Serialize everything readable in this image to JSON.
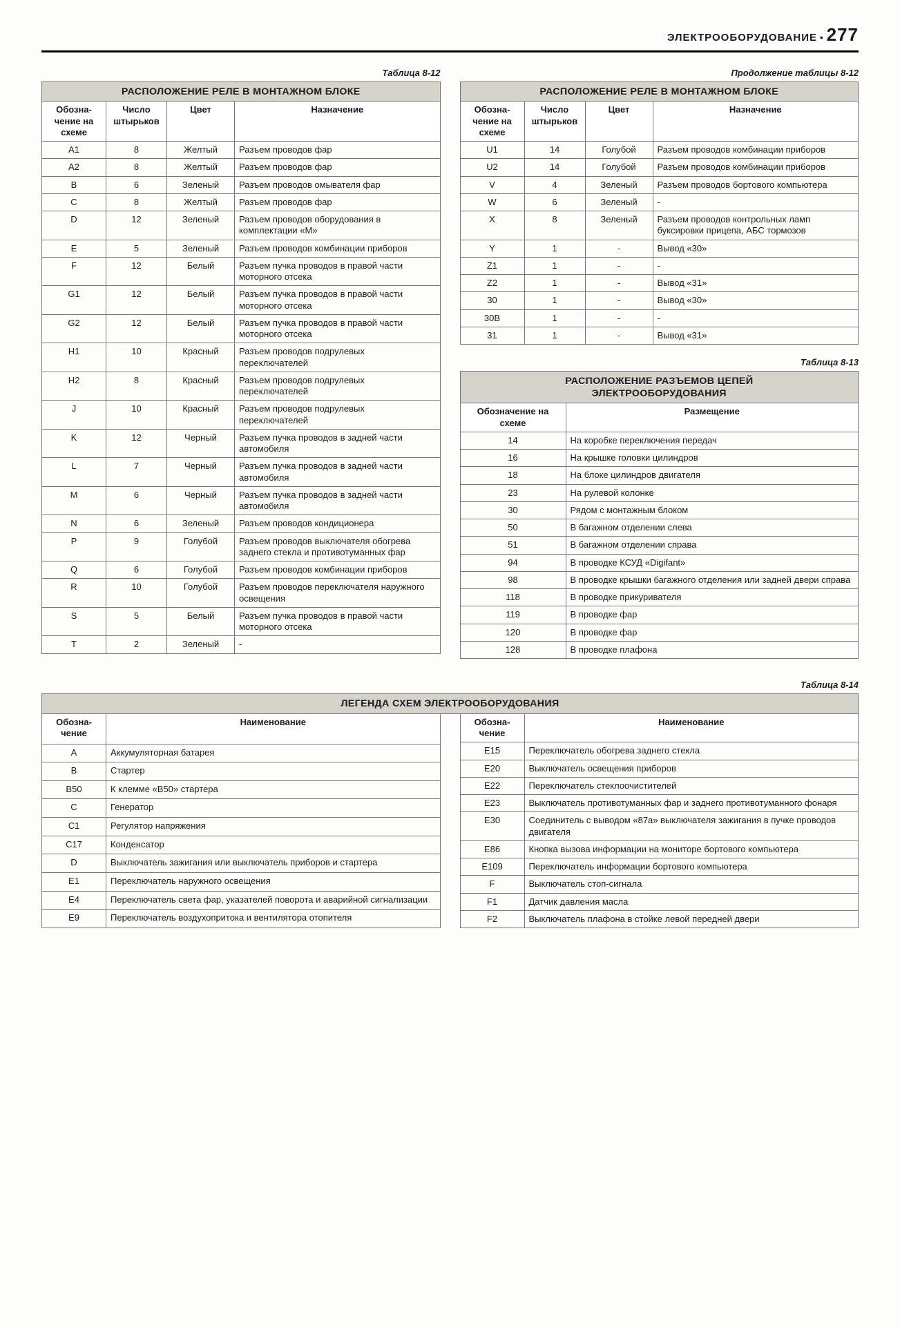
{
  "header": {
    "title": "ЭЛЕКТРООБОРУДОВАНИЕ",
    "page": "277"
  },
  "captions": {
    "t812": "Таблица 8-12",
    "t812c": "Продолжение таблицы 8-12",
    "t813": "Таблица 8-13",
    "t814": "Таблица 8-14"
  },
  "titles": {
    "t812": "РАСПОЛОЖЕНИЕ РЕЛЕ В МОНТАЖНОМ БЛОКЕ",
    "t813a": "РАСПОЛОЖЕНИЕ РАЗЪЕМОВ ЦЕПЕЙ",
    "t813b": "ЭЛЕКТРООБОРУДОВАНИЯ",
    "t814": "ЛЕГЕНДА СХЕМ ЭЛЕКТРООБОРУДОВАНИЯ"
  },
  "heads": {
    "a": "Обозна­чение на схеме",
    "b": "Число штырь­ков",
    "c": "Цвет",
    "d": "Назначение",
    "e": "Обозначение на схеме",
    "f": "Размещение",
    "g": "Обозна­чение",
    "h": "Наименование"
  },
  "t812L": [
    [
      "A1",
      "8",
      "Желтый",
      "Разъем проводов фар"
    ],
    [
      "A2",
      "8",
      "Желтый",
      "Разъем проводов фар"
    ],
    [
      "B",
      "6",
      "Зеленый",
      "Разъем проводов омывателя фар"
    ],
    [
      "C",
      "8",
      "Желтый",
      "Разъем проводов фар"
    ],
    [
      "D",
      "12",
      "Зеленый",
      "Разъем проводов оборудования в комплектации «М»"
    ],
    [
      "E",
      "5",
      "Зеленый",
      "Разъем проводов комбинации приборов"
    ],
    [
      "F",
      "12",
      "Белый",
      "Разъем пучка проводов в пра­вой части моторного отсека"
    ],
    [
      "G1",
      "12",
      "Белый",
      "Разъем пучка проводов в пра­вой части моторного отсека"
    ],
    [
      "G2",
      "12",
      "Белый",
      "Разъем пучка проводов в пра­вой части моторного отсека"
    ],
    [
      "H1",
      "10",
      "Красный",
      "Разъем проводов подрулевых переключателей"
    ],
    [
      "H2",
      "8",
      "Красный",
      "Разъем проводов подрулевых переключателей"
    ],
    [
      "J",
      "10",
      "Красный",
      "Разъем проводов подрулевых переключателей"
    ],
    [
      "K",
      "12",
      "Черный",
      "Разъем пучка проводов в зад­ней части автомобиля"
    ],
    [
      "L",
      "7",
      "Черный",
      "Разъем пучка проводов в зад­ней части автомобиля"
    ],
    [
      "M",
      "6",
      "Черный",
      "Разъем пучка проводов в зад­ней части автомобиля"
    ],
    [
      "N",
      "6",
      "Зеленый",
      "Разъем проводов кондиционера"
    ],
    [
      "P",
      "9",
      "Голубой",
      "Разъем проводов выключателя обогрева заднего стекла и про­тивотуманных фар"
    ],
    [
      "Q",
      "6",
      "Голубой",
      "Разъем проводов комбинации приборов"
    ],
    [
      "R",
      "10",
      "Голубой",
      "Разъем проводов переключате­ля наружного освещения"
    ],
    [
      "S",
      "5",
      "Белый",
      "Разъем пучка проводов в пра­вой части моторного отсека"
    ],
    [
      "T",
      "2",
      "Зеленый",
      "-"
    ]
  ],
  "t812R": [
    [
      "U1",
      "14",
      "Голубой",
      "Разъем проводов комбинации приборов"
    ],
    [
      "U2",
      "14",
      "Голубой",
      "Разъем проводов комбинации приборов"
    ],
    [
      "V",
      "4",
      "Зеленый",
      "Разъем проводов бортового компьютера"
    ],
    [
      "W",
      "6",
      "Зеленый",
      "-"
    ],
    [
      "X",
      "8",
      "Зеленый",
      "Разъем проводов контрольных ламп буксировки прицепа, АБС тормозов"
    ],
    [
      "Y",
      "1",
      "-",
      "Вывод «30»"
    ],
    [
      "Z1",
      "1",
      "-",
      "-"
    ],
    [
      "Z2",
      "1",
      "-",
      "Вывод «31»"
    ],
    [
      "30",
      "1",
      "-",
      "Вывод «30»"
    ],
    [
      "30B",
      "1",
      "-",
      "-"
    ],
    [
      "31",
      "1",
      "-",
      "Вывод «31»"
    ]
  ],
  "t813": [
    [
      "14",
      "На коробке переключения передач"
    ],
    [
      "16",
      "На крышке головки цилиндров"
    ],
    [
      "18",
      "На блоке цилиндров двигателя"
    ],
    [
      "23",
      "На рулевой колонке"
    ],
    [
      "30",
      "Рядом с монтажным блоком"
    ],
    [
      "50",
      "В багажном отделении слева"
    ],
    [
      "51",
      "В багажном отделении справа"
    ],
    [
      "94",
      "В проводке КСУД «Digifant»"
    ],
    [
      "98",
      "В проводке крышки багажного отделения или задней двери справа"
    ],
    [
      "118",
      "В проводке прикуривателя"
    ],
    [
      "119",
      "В проводке фар"
    ],
    [
      "120",
      "В проводке фар"
    ],
    [
      "128",
      "В проводке плафона"
    ]
  ],
  "t814L": [
    [
      "A",
      "Аккумуляторная батарея"
    ],
    [
      "B",
      "Стартер"
    ],
    [
      "B50",
      "К клемме «B50» стартера"
    ],
    [
      "C",
      "Генератор"
    ],
    [
      "C1",
      "Регулятор напряжения"
    ],
    [
      "C17",
      "Конденсатор"
    ],
    [
      "D",
      "Выключатель зажигания или выключатель приборов и стартера"
    ],
    [
      "E1",
      "Переключатель наружного освещения"
    ],
    [
      "E4",
      "Переключатель света фар, указателей поворота и ава­рийной сигнализации"
    ],
    [
      "E9",
      "Переключатель воздухопритока и вентилятора отопи­теля"
    ]
  ],
  "t814R": [
    [
      "E15",
      "Переключатель обогрева заднего стекла"
    ],
    [
      "E20",
      "Выключатель освещения приборов"
    ],
    [
      "E22",
      "Переключатель стеклоочистителей"
    ],
    [
      "E23",
      "Выключатель противотуманных фар и заднего проти­вотуманного фонаря"
    ],
    [
      "E30",
      "Соединитель с выводом «87a» выключателя зажига­ния в пучке проводов двигателя"
    ],
    [
      "E86",
      "Кнопка вызова информации на мониторе бортового компьютера"
    ],
    [
      "E109",
      "Переключатель информации бортового компьютера"
    ],
    [
      "F",
      "Выключатель стоп-сигнала"
    ],
    [
      "F1",
      "Датчик давления масла"
    ],
    [
      "F2",
      "Выключатель плафона в стойке левой передней двери"
    ]
  ]
}
